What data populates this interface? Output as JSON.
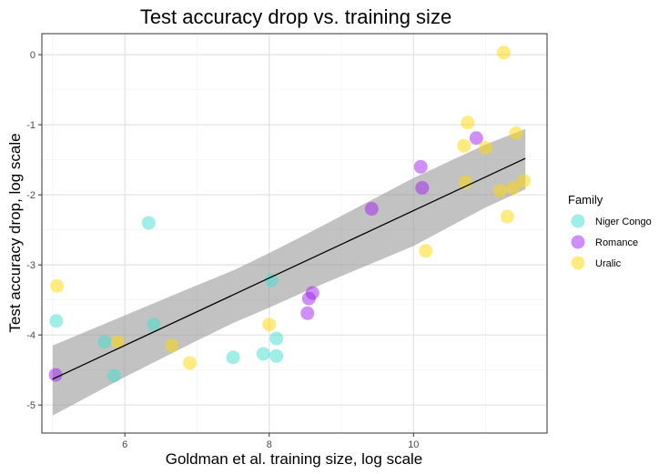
{
  "chart_data": {
    "type": "scatter",
    "title": "Test accuracy drop vs. training size",
    "xlabel": "Goldman et al. training size, log scale",
    "ylabel": "Test accuracy drop, log scale",
    "xlim": [
      4.85,
      11.85
    ],
    "ylim": [
      -5.4,
      0.3
    ],
    "xticks": [
      6,
      8,
      10
    ],
    "yticks": [
      0,
      -1,
      -2,
      -3,
      -4,
      -5
    ],
    "grid": true,
    "legend": {
      "title": "Family",
      "placement": "right"
    },
    "series": [
      {
        "name": "Niger Congo",
        "color": "#40e0d0",
        "points": [
          [
            5.05,
            -3.8
          ],
          [
            6.33,
            -2.4
          ],
          [
            5.72,
            -4.1
          ],
          [
            5.85,
            -4.58
          ],
          [
            6.4,
            -3.85
          ],
          [
            7.5,
            -4.32
          ],
          [
            7.92,
            -4.27
          ],
          [
            8.03,
            -3.22
          ],
          [
            8.1,
            -4.05
          ],
          [
            8.1,
            -4.3
          ]
        ]
      },
      {
        "name": "Romance",
        "color": "#a020f0",
        "points": [
          [
            5.04,
            -4.57
          ],
          [
            8.55,
            -3.48
          ],
          [
            8.6,
            -3.4
          ],
          [
            8.53,
            -3.69
          ],
          [
            9.42,
            -2.2
          ],
          [
            10.1,
            -1.6
          ],
          [
            10.12,
            -1.9
          ],
          [
            10.87,
            -1.19
          ]
        ]
      },
      {
        "name": "Uralic",
        "color": "#ffd700",
        "points": [
          [
            5.06,
            -3.3
          ],
          [
            5.9,
            -4.1
          ],
          [
            6.65,
            -4.15
          ],
          [
            6.9,
            -4.4
          ],
          [
            8.0,
            -3.85
          ],
          [
            10.17,
            -2.8
          ],
          [
            10.7,
            -1.3
          ],
          [
            10.75,
            -0.97
          ],
          [
            10.72,
            -1.82
          ],
          [
            11.0,
            -1.33
          ],
          [
            11.2,
            -1.94
          ],
          [
            11.25,
            0.03
          ],
          [
            11.3,
            -2.31
          ],
          [
            11.38,
            -1.9
          ],
          [
            11.42,
            -1.12
          ],
          [
            11.53,
            -1.8
          ]
        ]
      }
    ],
    "fit": {
      "line": [
        [
          5.0,
          -4.63
        ],
        [
          11.55,
          -1.48
        ]
      ],
      "band_upper": [
        [
          5.0,
          -4.15
        ],
        [
          6.0,
          -3.72
        ],
        [
          7.0,
          -3.29
        ],
        [
          7.5,
          -3.08
        ],
        [
          8.0,
          -2.83
        ],
        [
          8.5,
          -2.57
        ],
        [
          9.0,
          -2.3
        ],
        [
          10.0,
          -1.76
        ],
        [
          11.0,
          -1.28
        ],
        [
          11.55,
          -1.06
        ]
      ],
      "band_lower": [
        [
          5.0,
          -5.15
        ],
        [
          6.0,
          -4.6
        ],
        [
          7.0,
          -4.08
        ],
        [
          7.5,
          -3.83
        ],
        [
          8.0,
          -3.61
        ],
        [
          8.5,
          -3.38
        ],
        [
          9.0,
          -3.16
        ],
        [
          10.0,
          -2.73
        ],
        [
          11.0,
          -2.18
        ],
        [
          11.55,
          -1.92
        ]
      ]
    }
  }
}
